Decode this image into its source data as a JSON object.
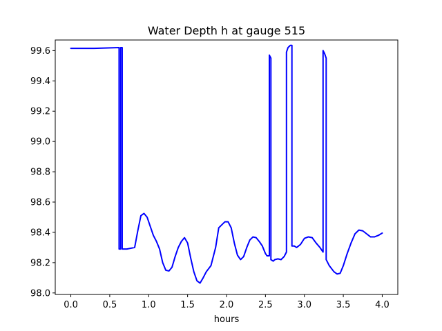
{
  "chart_data": {
    "type": "line",
    "title": "Water Depth h at gauge 515",
    "xlabel": "hours",
    "ylabel": "",
    "xlim": [
      -0.2,
      4.2
    ],
    "ylim": [
      97.99,
      99.67
    ],
    "xticks": [
      0.0,
      0.5,
      1.0,
      1.5,
      2.0,
      2.5,
      3.0,
      3.5,
      4.0
    ],
    "xtick_labels": [
      "0.0",
      "0.5",
      "1.0",
      "1.5",
      "2.0",
      "2.5",
      "3.0",
      "3.5",
      "4.0"
    ],
    "yticks": [
      98.0,
      98.2,
      98.4,
      98.6,
      98.8,
      99.0,
      99.2,
      99.4,
      99.6
    ],
    "ytick_labels": [
      "98.0",
      "98.2",
      "98.4",
      "98.6",
      "98.8",
      "99.0",
      "99.2",
      "99.4",
      "99.6"
    ],
    "grid": false,
    "series": [
      {
        "name": "",
        "color": "#0000ff",
        "points": [
          [
            0.0,
            99.615
          ],
          [
            0.3,
            99.615
          ],
          [
            0.62,
            99.62
          ],
          [
            0.62,
            98.29
          ],
          [
            0.64,
            98.29
          ],
          [
            0.64,
            99.62
          ],
          [
            0.66,
            99.62
          ],
          [
            0.66,
            98.29
          ],
          [
            0.72,
            98.29
          ],
          [
            0.82,
            98.3
          ],
          [
            0.86,
            98.41
          ],
          [
            0.9,
            98.51
          ],
          [
            0.94,
            98.525
          ],
          [
            0.98,
            98.5
          ],
          [
            1.02,
            98.44
          ],
          [
            1.06,
            98.38
          ],
          [
            1.1,
            98.34
          ],
          [
            1.14,
            98.29
          ],
          [
            1.18,
            98.2
          ],
          [
            1.22,
            98.15
          ],
          [
            1.26,
            98.145
          ],
          [
            1.3,
            98.17
          ],
          [
            1.34,
            98.24
          ],
          [
            1.38,
            98.3
          ],
          [
            1.42,
            98.34
          ],
          [
            1.46,
            98.365
          ],
          [
            1.5,
            98.33
          ],
          [
            1.54,
            98.23
          ],
          [
            1.58,
            98.14
          ],
          [
            1.62,
            98.08
          ],
          [
            1.66,
            98.065
          ],
          [
            1.7,
            98.1
          ],
          [
            1.74,
            98.14
          ],
          [
            1.8,
            98.18
          ],
          [
            1.86,
            98.3
          ],
          [
            1.9,
            98.43
          ],
          [
            1.94,
            98.45
          ],
          [
            1.98,
            98.47
          ],
          [
            2.02,
            98.47
          ],
          [
            2.06,
            98.43
          ],
          [
            2.1,
            98.33
          ],
          [
            2.14,
            98.25
          ],
          [
            2.18,
            98.22
          ],
          [
            2.22,
            98.24
          ],
          [
            2.26,
            98.3
          ],
          [
            2.3,
            98.35
          ],
          [
            2.34,
            98.37
          ],
          [
            2.38,
            98.365
          ],
          [
            2.42,
            98.34
          ],
          [
            2.46,
            98.31
          ],
          [
            2.5,
            98.26
          ],
          [
            2.52,
            98.245
          ],
          [
            2.55,
            98.245
          ],
          [
            2.55,
            99.57
          ],
          [
            2.57,
            99.55
          ],
          [
            2.57,
            98.22
          ],
          [
            2.6,
            98.21
          ],
          [
            2.62,
            98.22
          ],
          [
            2.66,
            98.225
          ],
          [
            2.7,
            98.22
          ],
          [
            2.74,
            98.24
          ],
          [
            2.77,
            98.27
          ],
          [
            2.77,
            99.59
          ],
          [
            2.79,
            99.62
          ],
          [
            2.82,
            99.635
          ],
          [
            2.84,
            99.635
          ],
          [
            2.84,
            98.31
          ],
          [
            2.87,
            98.31
          ],
          [
            2.9,
            98.3
          ],
          [
            2.95,
            98.32
          ],
          [
            3.0,
            98.36
          ],
          [
            3.05,
            98.37
          ],
          [
            3.1,
            98.365
          ],
          [
            3.15,
            98.33
          ],
          [
            3.2,
            98.3
          ],
          [
            3.24,
            98.27
          ],
          [
            3.24,
            99.6
          ],
          [
            3.26,
            99.58
          ],
          [
            3.28,
            99.55
          ],
          [
            3.28,
            98.22
          ],
          [
            3.32,
            98.18
          ],
          [
            3.38,
            98.14
          ],
          [
            3.42,
            98.125
          ],
          [
            3.46,
            98.13
          ],
          [
            3.5,
            98.18
          ],
          [
            3.55,
            98.26
          ],
          [
            3.6,
            98.33
          ],
          [
            3.65,
            98.39
          ],
          [
            3.7,
            98.415
          ],
          [
            3.75,
            98.41
          ],
          [
            3.8,
            98.39
          ],
          [
            3.85,
            98.37
          ],
          [
            3.9,
            98.37
          ],
          [
            3.95,
            98.38
          ],
          [
            4.0,
            98.395
          ]
        ]
      }
    ]
  }
}
